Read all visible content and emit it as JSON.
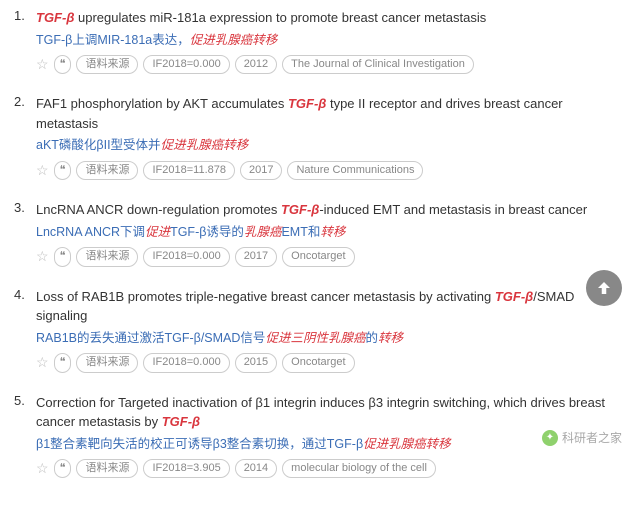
{
  "labels": {
    "source": "语料来源"
  },
  "accent": "#d9363e",
  "link": "#3b6db5",
  "items": [
    {
      "title_en_parts": [
        [
          "TGF-β",
          true
        ],
        [
          " upregulates miR-181a expression to promote breast cancer metastasis",
          false
        ]
      ],
      "title_zh_parts": [
        [
          "TGF-β上调MIR-181a表达，",
          false
        ],
        [
          "促进乳腺癌转移",
          true
        ]
      ],
      "if": "IF2018=0.000",
      "year": "2012",
      "journal": "The Journal of Clinical Investigation"
    },
    {
      "title_en_parts": [
        [
          "FAF1 phosphorylation by AKT accumulates ",
          false
        ],
        [
          "TGF-β",
          true
        ],
        [
          " type II receptor and drives breast cancer metastasis",
          false
        ]
      ],
      "title_zh_parts": [
        [
          "aKT磷酸化βII型受体并",
          false
        ],
        [
          "促进乳腺癌转移",
          true
        ]
      ],
      "if": "IF2018=11.878",
      "year": "2017",
      "journal": "Nature Communications"
    },
    {
      "title_en_parts": [
        [
          "LncRNA ANCR down-regulation promotes ",
          false
        ],
        [
          "TGF-β",
          true
        ],
        [
          "-induced EMT and metastasis in breast cancer",
          false
        ]
      ],
      "title_zh_parts": [
        [
          "LncRNA ANCR下调",
          false
        ],
        [
          "促进",
          true
        ],
        [
          "TGF-β诱导的",
          false
        ],
        [
          "乳腺癌",
          true
        ],
        [
          "EMT和",
          false
        ],
        [
          "转移",
          true
        ]
      ],
      "if": "IF2018=0.000",
      "year": "2017",
      "journal": "Oncotarget"
    },
    {
      "title_en_parts": [
        [
          "Loss of RAB1B promotes triple-negative breast cancer metastasis by activating ",
          false
        ],
        [
          "TGF-β",
          true
        ],
        [
          "/SMAD signaling",
          false
        ]
      ],
      "title_zh_parts": [
        [
          "RAB1B的丢失通过激活TGF-β/SMAD信号",
          false
        ],
        [
          "促进三阴性",
          true
        ],
        [
          "乳腺癌",
          true
        ],
        [
          "的",
          false
        ],
        [
          "转移",
          true
        ]
      ],
      "if": "IF2018=0.000",
      "year": "2015",
      "journal": "Oncotarget"
    },
    {
      "title_en_parts": [
        [
          "Correction for Targeted inactivation of β1 integrin induces β3 integrin switching, which drives breast cancer metastasis by ",
          false
        ],
        [
          "TGF-β",
          true
        ]
      ],
      "title_zh_parts": [
        [
          "β1整合素靶向失活的校正可诱导β3整合素切换，通过TGF-β",
          false
        ],
        [
          "促进乳腺癌转移",
          true
        ]
      ],
      "if": "IF2018=3.905",
      "year": "2014",
      "journal": "molecular biology of the cell"
    }
  ],
  "watermark": "科研者之家"
}
